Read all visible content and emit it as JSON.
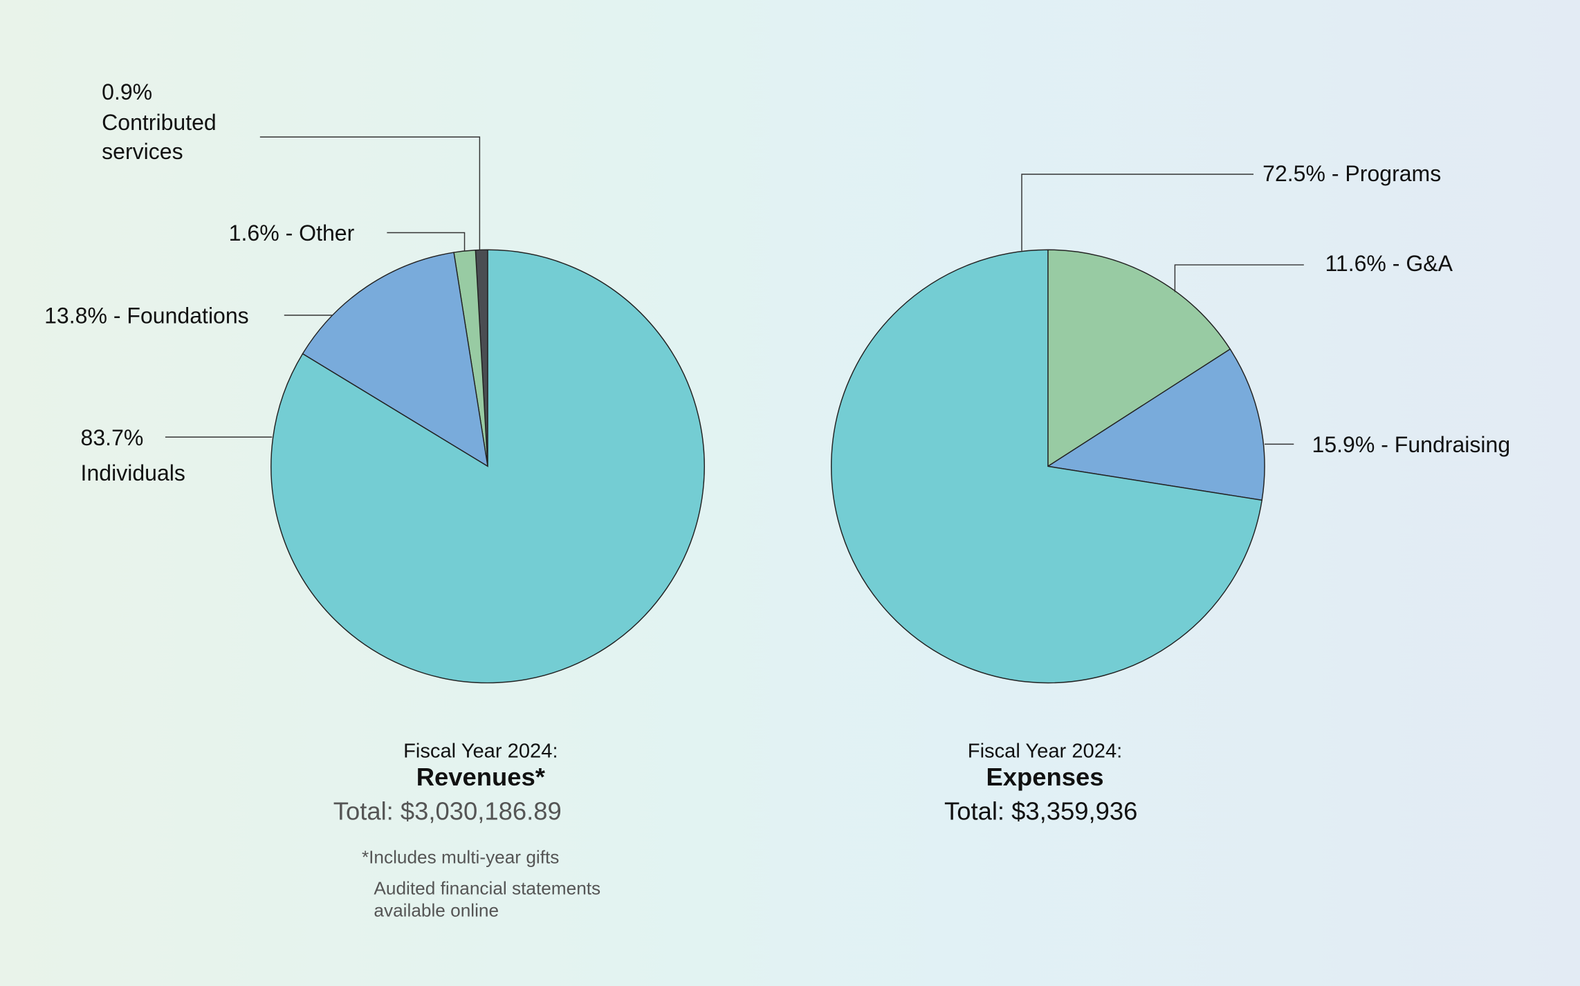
{
  "chart_data": [
    {
      "type": "pie",
      "direction": "counterclockwise",
      "start": "top",
      "subtitle": "Fiscal Year 2024:",
      "title": "Revenues*",
      "total": "Total: $3,030,186.89",
      "slices": [
        {
          "label": "Contributed services",
          "value": 0.9,
          "color": "#4a4d52"
        },
        {
          "label": "Other",
          "value": 1.6,
          "color": "#98cba3"
        },
        {
          "label": "Foundations",
          "value": 13.8,
          "color": "#79abdb"
        },
        {
          "label": "Individuals",
          "value": 83.7,
          "color": "#74cdd3"
        }
      ],
      "annotations": {
        "contributed": [
          "0.9%",
          "Contributed",
          "services"
        ],
        "other": "1.6% - Other",
        "foundations": "13.8% - Foundations",
        "individuals": [
          "83.7%",
          "Individuals"
        ]
      },
      "notes": [
        "*Includes multi-year gifts",
        "Audited financial statements",
        "available online"
      ]
    },
    {
      "type": "pie",
      "direction": "clockwise",
      "start": "top",
      "subtitle": "Fiscal Year 2024:",
      "title": "Expenses",
      "total": "Total: $3,359,936",
      "slices": [
        {
          "label": "Fundraising",
          "value": 15.9,
          "color": "#98cba3"
        },
        {
          "label": "G&A",
          "value": 11.6,
          "color": "#79abdb"
        },
        {
          "label": "Programs",
          "value": 72.5,
          "color": "#74cdd3"
        }
      ],
      "annotations": {
        "programs": "72.5% - Programs",
        "ga": "11.6% - G&A",
        "fundraising": "15.9% - Fundraising"
      }
    }
  ]
}
